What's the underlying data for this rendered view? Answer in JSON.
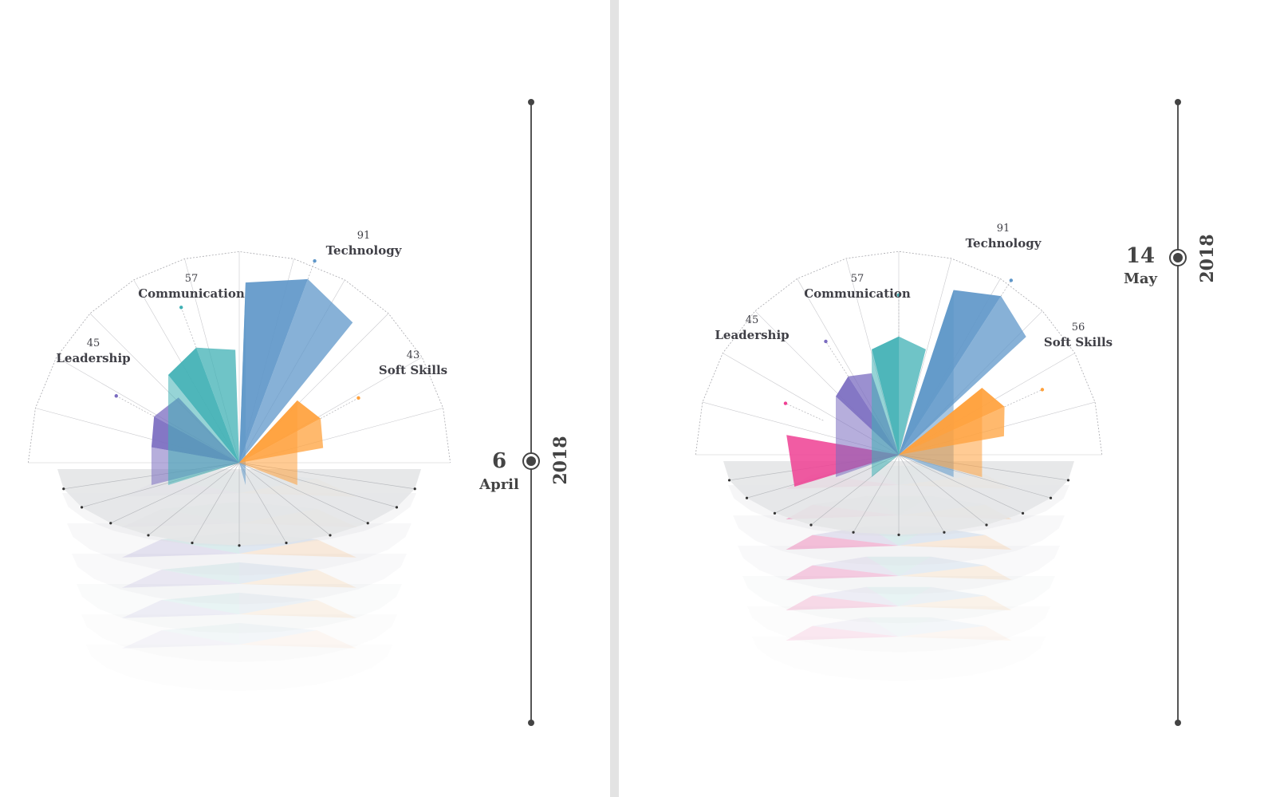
{
  "colors": {
    "leadership": "#7a6bc0",
    "communication": "#3fb0b4",
    "technology": "#5f97c9",
    "soft_skills": "#ffa13c",
    "extra": "#ef3f93",
    "base": "#e4e5e7"
  },
  "chart_data": [
    {
      "type": "radar",
      "title": "",
      "date": {
        "day": "6",
        "month": "April",
        "year": "2018"
      },
      "series": [
        {
          "key": "leadership",
          "label": "Leadership",
          "value": 45,
          "value_label": "45"
        },
        {
          "key": "communication",
          "label": "Communication",
          "value": 57,
          "value_label": "57"
        },
        {
          "key": "technology",
          "label": "Technology",
          "value": 91,
          "value_label": "91"
        },
        {
          "key": "soft_skills",
          "label": "Soft Skills",
          "value": 43,
          "value_label": "43"
        }
      ]
    },
    {
      "type": "radar",
      "title": "",
      "date": {
        "day": "14",
        "month": "May",
        "year": "2018"
      },
      "series": [
        {
          "key": "leadership",
          "label": "Leadership",
          "value": 45,
          "value_label": "45"
        },
        {
          "key": "communication",
          "label": "Communication",
          "value": 57,
          "value_label": "57"
        },
        {
          "key": "technology",
          "label": "Technology",
          "value": 91,
          "value_label": "91"
        },
        {
          "key": "soft_skills",
          "label": "Soft Skills",
          "value": 56,
          "value_label": "56"
        }
      ]
    }
  ]
}
